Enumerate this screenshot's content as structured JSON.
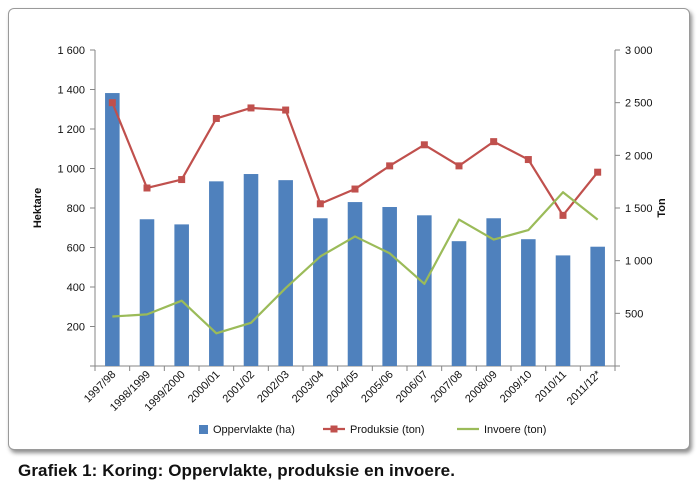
{
  "caption": "Grafiek 1: Koring: Oppervlakte, produksie en invoere.",
  "chart_data": {
    "type": "bar",
    "categories": [
      "1997/98",
      "1998/1999",
      "1999/2000",
      "2000/01",
      "2001/02",
      "2002/03",
      "2003/04",
      "2004/05",
      "2005/06",
      "2006/07",
      "2007/08",
      "2008/09",
      "2009/10",
      "2010/11",
      "2011/12*"
    ],
    "ylabel": "Hektare",
    "y2label": "Ton",
    "ylim": [
      0,
      1600
    ],
    "y2lim": [
      0,
      3000
    ],
    "yticks": [
      "200",
      "400",
      "600",
      "800",
      "1 000",
      "1 200",
      "1 400",
      "1 600"
    ],
    "y2ticks": [
      "500",
      "1 000",
      "1 500",
      "2 000",
      "2 500",
      "3 000"
    ],
    "legend_position": "bottom",
    "grid": false,
    "series": [
      {
        "name": "Oppervlakte (ha)",
        "type": "bar",
        "axis": "left",
        "color": "#4f81bd",
        "values": [
          1382,
          743,
          717,
          935,
          972,
          941,
          748,
          830,
          805,
          763,
          632,
          748,
          642,
          560,
          604
        ]
      },
      {
        "name": "Produksie (ton)",
        "type": "line",
        "axis": "right",
        "color": "#c0504d",
        "marker": "square",
        "values": [
          2500,
          1690,
          1770,
          2350,
          2450,
          2430,
          1540,
          1680,
          1900,
          2100,
          1900,
          2130,
          1960,
          1430,
          1840
        ]
      },
      {
        "name": "Invoere (ton)",
        "type": "line",
        "axis": "right",
        "color": "#9bbb59",
        "marker": "none",
        "values": [
          470,
          490,
          620,
          310,
          410,
          740,
          1040,
          1230,
          1070,
          780,
          1390,
          1200,
          1290,
          1650,
          1390
        ]
      }
    ]
  }
}
